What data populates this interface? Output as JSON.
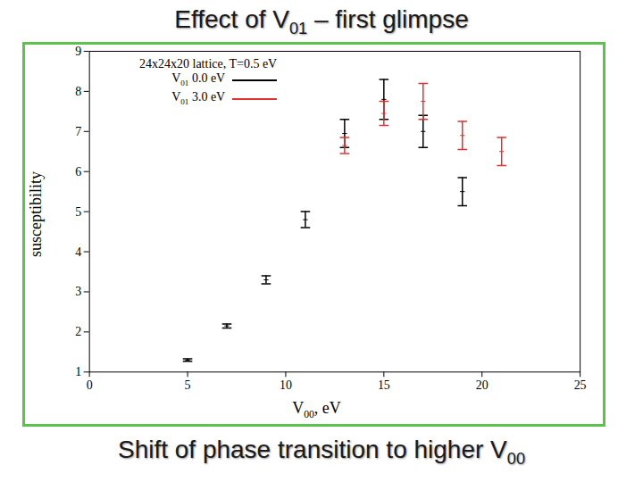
{
  "chart_data": {
    "type": "scatter",
    "title": "Effect of V01 – first glimpse",
    "legend_title": "24x24x20 lattice, T=0.5 eV",
    "x_label": "V00, eV",
    "y_label": "susceptibility",
    "caption": "Shift of phase transition to higher V00",
    "xlim": [
      0,
      25
    ],
    "xticks": [
      0,
      5,
      10,
      15,
      20,
      25
    ],
    "ylim": [
      1,
      9
    ],
    "yticks": [
      1,
      2,
      3,
      4,
      5,
      6,
      7,
      8,
      9
    ],
    "grid": false,
    "legend": "top-left",
    "marker": "errorbar",
    "series": [
      {
        "name": "V01 0.0 eV",
        "color": "#000000",
        "x": [
          5,
          7,
          9,
          11,
          13,
          15,
          17,
          19
        ],
        "values": [
          1.3,
          2.15,
          3.3,
          4.8,
          6.95,
          7.8,
          7.0,
          5.5
        ],
        "errors": [
          0.03,
          0.05,
          0.1,
          0.2,
          0.35,
          0.5,
          0.4,
          0.35
        ]
      },
      {
        "name": "V01 3.0 eV",
        "color": "#e03030",
        "x": [
          13,
          15,
          17,
          19,
          21
        ],
        "values": [
          6.65,
          7.45,
          7.75,
          6.9,
          6.5
        ],
        "errors": [
          0.2,
          0.3,
          0.45,
          0.35,
          0.35
        ]
      }
    ]
  }
}
